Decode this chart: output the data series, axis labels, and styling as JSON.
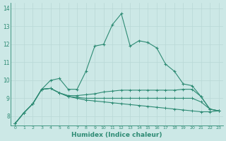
{
  "xlabel": "Humidex (Indice chaleur)",
  "x": [
    0,
    1,
    2,
    3,
    4,
    5,
    6,
    7,
    8,
    9,
    10,
    11,
    12,
    13,
    14,
    15,
    16,
    17,
    18,
    19,
    20,
    21,
    22,
    23
  ],
  "line1": [
    7.6,
    8.2,
    8.7,
    9.5,
    10.0,
    10.1,
    9.5,
    9.5,
    10.5,
    11.9,
    12.0,
    13.1,
    13.7,
    11.9,
    12.2,
    12.1,
    11.8,
    10.9,
    10.5,
    9.8,
    9.7,
    9.1,
    8.4,
    8.3
  ],
  "line2": [
    7.6,
    8.2,
    8.7,
    9.5,
    9.55,
    9.3,
    9.15,
    9.15,
    9.2,
    9.25,
    9.35,
    9.4,
    9.45,
    9.45,
    9.45,
    9.45,
    9.45,
    9.45,
    9.45,
    9.5,
    9.5,
    9.1,
    8.4,
    8.3
  ],
  "line3": [
    7.6,
    8.2,
    8.7,
    9.5,
    9.55,
    9.3,
    9.1,
    9.05,
    9.0,
    9.0,
    9.0,
    9.0,
    9.0,
    9.0,
    9.0,
    9.0,
    9.0,
    9.0,
    9.0,
    9.0,
    9.0,
    8.8,
    8.4,
    8.3
  ],
  "line4": [
    7.6,
    8.2,
    8.7,
    9.5,
    9.55,
    9.3,
    9.1,
    9.0,
    8.9,
    8.85,
    8.8,
    8.75,
    8.7,
    8.65,
    8.6,
    8.55,
    8.5,
    8.45,
    8.4,
    8.35,
    8.3,
    8.25,
    8.25,
    8.3
  ],
  "line_color": "#2e8b74",
  "bg_color": "#cce8e6",
  "grid_color": "#b8d8d6",
  "tick_color": "#2e8b74",
  "ylim": [
    7.5,
    14.3
  ],
  "yticks": [
    8,
    9,
    10,
    11,
    12,
    13,
    14
  ]
}
